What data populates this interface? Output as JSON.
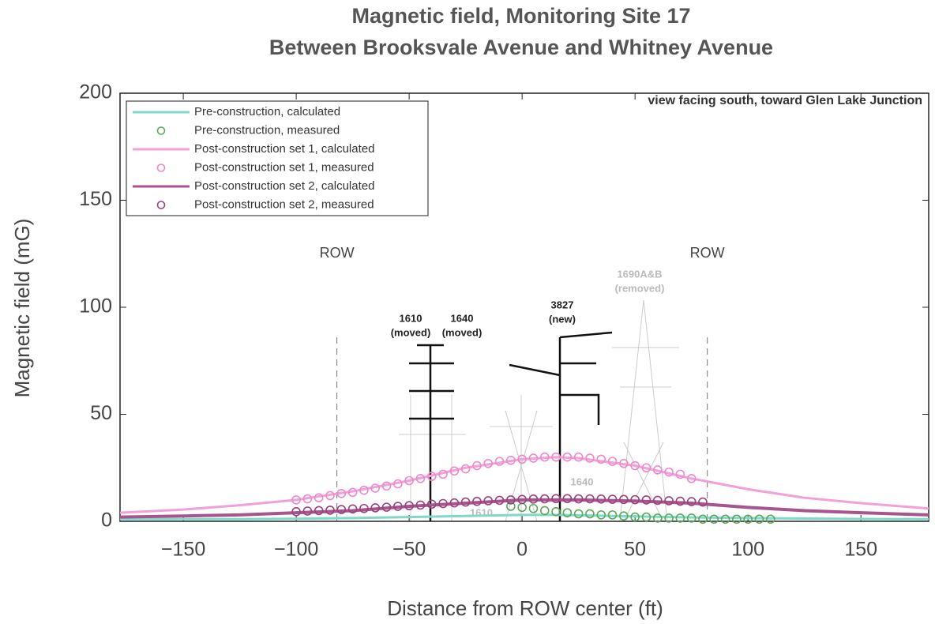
{
  "chart_data": {
    "type": "line",
    "title": "Magnetic field, Monitoring Site 17",
    "subtitle": "Between Brooksvale Avenue and Whitney Avenue",
    "x_label": "Distance from ROW center (ft)",
    "y_label": "Magnetic field (mG)",
    "xlim": [
      -178,
      180
    ],
    "ylim": [
      0,
      200
    ],
    "xticks": [
      {
        "value": -150,
        "label": "−150"
      },
      {
        "value": -100,
        "label": "−100"
      },
      {
        "value": -50,
        "label": "−50"
      },
      0,
      50,
      100,
      150
    ],
    "yticks": [
      0,
      50,
      100,
      150,
      200
    ],
    "legend_position": "upper left",
    "series": [
      {
        "name": "Pre-construction, calculated",
        "style": "line",
        "color": "#7fd9c8",
        "x": [
          -178,
          -150,
          -125,
          -100,
          -75,
          -50,
          -25,
          0,
          15,
          25,
          50,
          75,
          100,
          125,
          150,
          180
        ],
        "values": [
          1,
          1,
          1,
          1.2,
          1.5,
          2,
          2.5,
          3,
          3,
          2.8,
          2.3,
          1.8,
          1.5,
          1.3,
          1.1,
          1
        ]
      },
      {
        "name": "Pre-construction, measured",
        "style": "marker",
        "color": "#5aa85a",
        "x": [
          -5,
          0,
          5,
          10,
          15,
          20,
          25,
          30,
          35,
          40,
          45,
          50,
          55,
          60,
          65,
          70,
          75,
          80,
          85,
          90,
          95,
          100,
          105,
          110
        ],
        "values": [
          7,
          6.5,
          6,
          5,
          4.5,
          4,
          3.5,
          3.5,
          3,
          3,
          2.5,
          2,
          2,
          1.5,
          1.5,
          1.5,
          1.5,
          1,
          1,
          1,
          1,
          1,
          1,
          1
        ]
      },
      {
        "name": "Post-construction set 1, calculated",
        "style": "line",
        "color": "#f39fd8",
        "x": [
          -178,
          -150,
          -125,
          -100,
          -75,
          -50,
          -25,
          0,
          15,
          25,
          50,
          75,
          100,
          125,
          150,
          180
        ],
        "values": [
          4,
          5.5,
          7.5,
          10,
          14,
          19,
          25,
          29,
          30,
          29.5,
          26,
          20,
          15,
          11,
          8.5,
          6
        ]
      },
      {
        "name": "Post-construction set 1, measured",
        "style": "marker",
        "color": "#ee88cc",
        "x": [
          -100,
          -95,
          -90,
          -85,
          -80,
          -75,
          -70,
          -65,
          -60,
          -55,
          -50,
          -45,
          -40,
          -35,
          -30,
          -25,
          -20,
          -15,
          -10,
          -5,
          0,
          5,
          10,
          15,
          20,
          25,
          30,
          35,
          40,
          45,
          50,
          55,
          60,
          65,
          70,
          75
        ],
        "values": [
          10,
          10.5,
          11,
          12,
          13,
          13.5,
          14.5,
          15.5,
          16.5,
          17.5,
          19,
          20,
          21,
          22,
          23.5,
          24.5,
          26,
          27,
          28,
          28.5,
          29,
          29.5,
          30,
          30,
          30,
          30,
          29.5,
          29,
          28,
          27,
          26,
          25,
          24,
          23,
          22,
          20
        ]
      },
      {
        "name": "Post-construction set 2, calculated",
        "style": "line",
        "color": "#a8558f",
        "x": [
          -178,
          -150,
          -125,
          -100,
          -75,
          -50,
          -25,
          0,
          15,
          25,
          50,
          75,
          100,
          125,
          150,
          180
        ],
        "values": [
          2,
          2.5,
          3,
          4,
          5,
          7,
          8.5,
          10,
          10,
          10,
          9.5,
          8.5,
          6.5,
          5,
          4,
          3
        ]
      },
      {
        "name": "Post-construction set 2, measured",
        "style": "marker",
        "color": "#9b3f7f",
        "x": [
          -100,
          -95,
          -90,
          -85,
          -80,
          -75,
          -70,
          -65,
          -60,
          -55,
          -50,
          -45,
          -40,
          -35,
          -30,
          -25,
          -20,
          -15,
          -10,
          -5,
          0,
          5,
          10,
          15,
          20,
          25,
          30,
          35,
          40,
          45,
          50,
          55,
          60,
          65,
          70,
          75,
          80
        ],
        "values": [
          4.5,
          4.8,
          5,
          5.2,
          5.5,
          5.8,
          6,
          6.3,
          6.6,
          7,
          7.3,
          7.6,
          8,
          8.3,
          8.6,
          9,
          9.3,
          9.6,
          9.8,
          10,
          10.2,
          10.4,
          10.5,
          10.6,
          10.6,
          10.5,
          10.5,
          10.4,
          10.3,
          10.2,
          10.1,
          10,
          9.8,
          9.6,
          9.4,
          9.2,
          9
        ]
      }
    ],
    "row_lines": [
      {
        "x": -82,
        "label": "ROW"
      },
      {
        "x": 82,
        "label": "ROW"
      }
    ],
    "annotations": {
      "view": "view facing south, toward Glen Lake Junction",
      "pole_1610": [
        "1610",
        "(moved)"
      ],
      "pole_1640": [
        "1640",
        "(moved)"
      ],
      "pole_3827": [
        "3827",
        "(new)"
      ],
      "pole_1690": [
        "1690A&B",
        "(removed)"
      ],
      "old_1610": "1610",
      "old_1640": "1640"
    }
  }
}
